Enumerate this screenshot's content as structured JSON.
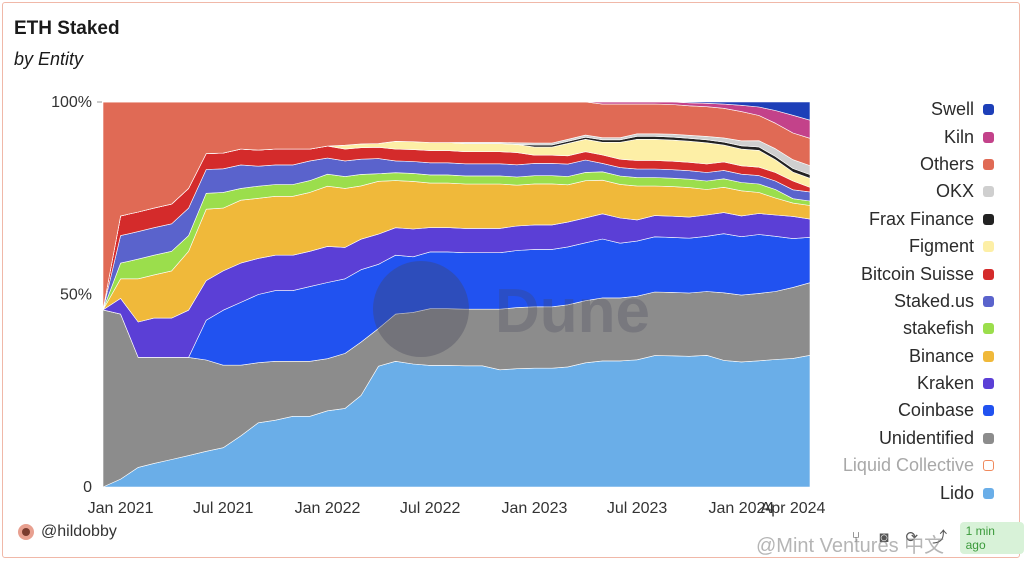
{
  "title": "ETH Staked",
  "subtitle": "by Entity",
  "watermark": "Dune",
  "user": "@hildobby",
  "badge": "1 min ago",
  "source_watermark": "@Mint Ventures 中文",
  "chart_data": {
    "type": "area",
    "stacking": "percent",
    "title": "ETH Staked",
    "subtitle": "by Entity",
    "x": [
      "2020-12-01",
      "2021-01-01",
      "2021-02-01",
      "2021-03-01",
      "2021-04-01",
      "2021-05-01",
      "2021-06-01",
      "2021-07-01",
      "2021-08-01",
      "2021-09-01",
      "2021-10-01",
      "2021-11-01",
      "2021-12-01",
      "2022-01-01",
      "2022-02-01",
      "2022-03-01",
      "2022-04-01",
      "2022-05-01",
      "2022-06-01",
      "2022-07-01",
      "2022-08-01",
      "2022-09-01",
      "2022-10-01",
      "2022-11-01",
      "2022-12-01",
      "2023-01-01",
      "2023-02-01",
      "2023-03-01",
      "2023-04-01",
      "2023-05-01",
      "2023-06-01",
      "2023-07-01",
      "2023-08-01",
      "2023-09-01",
      "2023-10-01",
      "2023-11-01",
      "2023-12-01",
      "2024-01-01",
      "2024-02-01",
      "2024-03-01",
      "2024-04-01",
      "2024-05-01"
    ],
    "x_ticks": [
      "Jan 2021",
      "Jul 2021",
      "Jan 2022",
      "Jul 2022",
      "Jan 2023",
      "Jul 2023",
      "Jan 2024",
      "Apr 2024"
    ],
    "x_tick_dates": [
      "2021-01-01",
      "2021-07-01",
      "2022-01-01",
      "2022-07-01",
      "2023-01-01",
      "2023-07-01",
      "2024-01-01",
      "2024-04-01"
    ],
    "y_ticks": [
      "0",
      "50%",
      "100%"
    ],
    "ylim": [
      0,
      100
    ],
    "legend_position": "right",
    "series": [
      {
        "name": "Lido",
        "color": "#6aaee8",
        "values": [
          0,
          2,
          5,
          6,
          7,
          8,
          9,
          10,
          13,
          16,
          17,
          18,
          18,
          19,
          20,
          24,
          32,
          32,
          31,
          30,
          30,
          30,
          30,
          29,
          29,
          29,
          29,
          29,
          30,
          30,
          30,
          30,
          31,
          31,
          31,
          31,
          30,
          30,
          30,
          30,
          29,
          29
        ]
      },
      {
        "name": "Liquid Collective",
        "color": "#f08a5d",
        "hollow": true,
        "values": [
          0,
          0,
          0,
          0,
          0,
          0,
          0,
          0,
          0,
          0,
          0,
          0,
          0,
          0,
          0,
          0,
          0,
          0,
          0,
          0,
          0,
          0,
          0,
          0,
          0,
          0,
          0,
          0,
          0,
          0,
          0,
          0,
          0,
          0,
          0,
          0,
          0,
          0,
          0,
          0,
          0,
          0
        ]
      },
      {
        "name": "Unidentified",
        "color": "#8c8c8c",
        "values": [
          46,
          42,
          28,
          27,
          26,
          25,
          23,
          21,
          18,
          15,
          15,
          14,
          14,
          13,
          14,
          14,
          10,
          12,
          13,
          14,
          14,
          14,
          14,
          15,
          15,
          15,
          15,
          15,
          15,
          15,
          15,
          15,
          15,
          15,
          15,
          15,
          16,
          16,
          16,
          16,
          16,
          16
        ]
      },
      {
        "name": "Coinbase",
        "color": "#2152f0",
        "values": [
          0,
          0,
          0,
          0,
          0,
          0,
          10,
          14,
          16,
          17,
          18,
          18,
          19,
          19,
          19,
          19,
          17,
          15,
          14,
          14,
          14,
          14,
          14,
          14,
          14,
          14,
          14,
          14,
          14,
          14,
          13,
          13,
          13,
          13,
          13,
          13,
          14,
          14,
          14,
          13,
          11,
          10
        ]
      },
      {
        "name": "Kraken",
        "color": "#5b3fd6",
        "values": [
          0,
          4,
          9,
          10,
          10,
          12,
          10,
          10,
          10,
          9,
          9,
          9,
          9,
          9,
          8,
          8,
          8,
          7,
          7,
          6,
          6,
          6,
          6,
          6,
          6,
          6,
          6,
          6,
          6,
          6,
          6,
          5,
          5,
          5,
          5,
          5,
          5,
          5,
          5,
          5,
          5,
          4
        ]
      },
      {
        "name": "Binance",
        "color": "#f0b93a",
        "values": [
          0,
          5,
          11,
          11,
          12,
          15,
          18,
          16,
          16,
          15,
          15,
          15,
          15,
          15,
          15,
          14,
          14,
          12,
          12,
          11,
          11,
          11,
          11,
          11,
          10,
          10,
          10,
          9,
          9,
          8,
          8,
          8,
          7,
          7,
          7,
          6,
          6,
          6,
          5,
          4,
          3,
          3
        ]
      },
      {
        "name": "stakefish",
        "color": "#9bde4c",
        "values": [
          0,
          4,
          5,
          5,
          5,
          4,
          4,
          4,
          3,
          3,
          3,
          3,
          3,
          3,
          3,
          3,
          2,
          2,
          2,
          2,
          2,
          2,
          2,
          2,
          2,
          2,
          2,
          2,
          2,
          2,
          2,
          2,
          2,
          2,
          2,
          2,
          2,
          2,
          2,
          2,
          1,
          1
        ]
      },
      {
        "name": "Staked.us",
        "color": "#5a63cc",
        "values": [
          0,
          7,
          7,
          7,
          7,
          7,
          6,
          6,
          6,
          5,
          5,
          5,
          5,
          4,
          4,
          4,
          4,
          3,
          3,
          3,
          3,
          3,
          3,
          3,
          3,
          3,
          3,
          3,
          3,
          2,
          2,
          2,
          2,
          2,
          2,
          2,
          2,
          2,
          2,
          2,
          2,
          2
        ]
      },
      {
        "name": "Bitcoin Suisse",
        "color": "#d42b2b",
        "values": [
          0,
          5,
          5,
          5,
          5,
          5,
          4,
          4,
          4,
          4,
          4,
          4,
          3,
          3,
          3,
          3,
          3,
          3,
          3,
          3,
          3,
          3,
          3,
          3,
          3,
          2,
          2,
          2,
          2,
          2,
          2,
          2,
          2,
          2,
          2,
          2,
          2,
          2,
          2,
          2,
          2,
          1
        ]
      },
      {
        "name": "Figment",
        "color": "#fdefa6",
        "values": [
          0,
          0,
          0,
          0,
          0,
          0,
          0,
          0,
          0,
          0,
          0,
          0,
          0,
          0,
          1,
          1,
          1,
          2,
          2,
          2,
          2,
          2,
          2,
          2,
          2,
          2,
          2,
          3,
          3,
          3,
          4,
          5,
          5,
          5,
          5,
          5,
          4,
          4,
          4,
          3,
          2,
          2
        ]
      },
      {
        "name": "Frax Finance",
        "color": "#222222",
        "values": [
          0,
          0,
          0,
          0,
          0,
          0,
          0,
          0,
          0,
          0,
          0,
          0,
          0,
          0,
          0,
          0,
          0,
          0,
          0,
          0,
          0,
          0,
          0,
          0,
          0,
          0.5,
          0.5,
          0.5,
          0.5,
          0.6,
          0.6,
          0.7,
          0.7,
          0.7,
          0.7,
          0.7,
          0.7,
          0.8,
          0.8,
          0.8,
          0.8,
          0.8
        ]
      },
      {
        "name": "OKX",
        "color": "#cfcfcf",
        "values": [
          0,
          0,
          0,
          0,
          0,
          0,
          0,
          0,
          0,
          0,
          0,
          0,
          0,
          0,
          0,
          0,
          0,
          0,
          0,
          0,
          0,
          0.3,
          0.3,
          0.3,
          0.4,
          0.5,
          0.5,
          0.5,
          0.5,
          0.5,
          0.5,
          0.6,
          0.6,
          0.7,
          0.7,
          0.8,
          1,
          1.2,
          1.5,
          1.8,
          2,
          2
        ]
      },
      {
        "name": "Others",
        "color": "#e06a55",
        "values": [
          54,
          29,
          28,
          27,
          26,
          22,
          13,
          13,
          12,
          12,
          12,
          12,
          12,
          11,
          11,
          11,
          11,
          10,
          10,
          10,
          10,
          10,
          10,
          10,
          10,
          10,
          10,
          9,
          8,
          8,
          8,
          7,
          7,
          7,
          7,
          7,
          7,
          7,
          6,
          6,
          6,
          6
        ]
      },
      {
        "name": "Kiln",
        "color": "#c3428a",
        "values": [
          0,
          0,
          0,
          0,
          0,
          0,
          0,
          0,
          0,
          0,
          0,
          0,
          0,
          0,
          0,
          0,
          0,
          0,
          0,
          0,
          0,
          0,
          0,
          0,
          0,
          0,
          0,
          0,
          0,
          0.5,
          0.5,
          0.5,
          0.5,
          0.6,
          0.7,
          0.8,
          1,
          1.5,
          2,
          3,
          4,
          4
        ]
      },
      {
        "name": "Swell",
        "color": "#1d3fb8",
        "values": [
          0,
          0,
          0,
          0,
          0,
          0,
          0,
          0,
          0,
          0,
          0,
          0,
          0,
          0,
          0,
          0,
          0,
          0,
          0,
          0,
          0,
          0,
          0,
          0,
          0,
          0,
          0,
          0,
          0,
          0,
          0,
          0,
          0,
          0,
          0.2,
          0.3,
          0.5,
          0.8,
          1.2,
          2,
          3,
          4
        ]
      }
    ]
  }
}
